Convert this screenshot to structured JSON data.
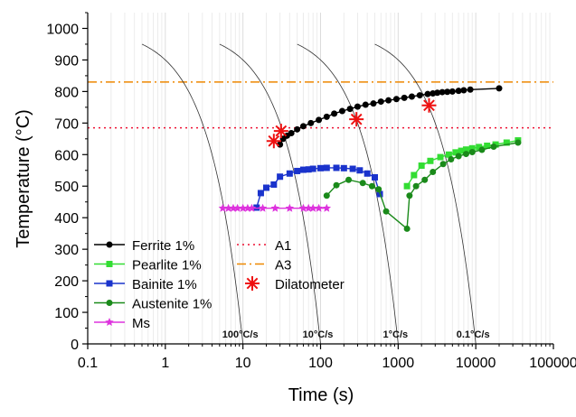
{
  "chart_data": {
    "type": "line",
    "xscale": "log",
    "xlabel": "Time (s)",
    "ylabel": "Temperature (°C)",
    "xlim": [
      0.1,
      100000
    ],
    "ylim": [
      0,
      1050
    ],
    "x_ticks": [
      {
        "value": 0.1,
        "label": "0.1"
      },
      {
        "value": 1,
        "label": "1"
      },
      {
        "value": 10,
        "label": "10"
      },
      {
        "value": 100,
        "label": "100"
      },
      {
        "value": 1000,
        "label": "1000"
      },
      {
        "value": 10000,
        "label": "10000"
      },
      {
        "value": 100000,
        "label": "100000"
      }
    ],
    "y_ticks": [
      {
        "value": 0,
        "label": "0"
      },
      {
        "value": 100,
        "label": "100"
      },
      {
        "value": 200,
        "label": "200"
      },
      {
        "value": 300,
        "label": "300"
      },
      {
        "value": 400,
        "label": "400"
      },
      {
        "value": 500,
        "label": "500"
      },
      {
        "value": 600,
        "label": "600"
      },
      {
        "value": 700,
        "label": "700"
      },
      {
        "value": 800,
        "label": "800"
      },
      {
        "value": 900,
        "label": "900"
      },
      {
        "value": 1000,
        "label": "1000"
      }
    ],
    "grid": "vertical minor gridlines",
    "legend_position": "bottom-left",
    "series": [
      {
        "name": "Ferrite 1%",
        "color": "#000000",
        "marker": "circle",
        "line": "solid",
        "points": [
          [
            30,
            632
          ],
          [
            33,
            650
          ],
          [
            37,
            660
          ],
          [
            42,
            668
          ],
          [
            50,
            680
          ],
          [
            60,
            690
          ],
          [
            75,
            700
          ],
          [
            95,
            710
          ],
          [
            120,
            720
          ],
          [
            150,
            730
          ],
          [
            190,
            738
          ],
          [
            240,
            745
          ],
          [
            300,
            752
          ],
          [
            380,
            758
          ],
          [
            480,
            762
          ],
          [
            600,
            768
          ],
          [
            750,
            772
          ],
          [
            950,
            776
          ],
          [
            1200,
            780
          ],
          [
            1500,
            784
          ],
          [
            1900,
            788
          ],
          [
            2400,
            792
          ],
          [
            2800,
            794
          ],
          [
            3200,
            796
          ],
          [
            3700,
            798
          ],
          [
            4300,
            799
          ],
          [
            5000,
            800
          ],
          [
            6000,
            802
          ],
          [
            7000,
            804
          ],
          [
            8500,
            806
          ],
          [
            20000,
            810
          ]
        ]
      },
      {
        "name": "Pearlite 1%",
        "color": "#33dd33",
        "marker": "square",
        "line": "solid",
        "points": [
          [
            1300,
            500
          ],
          [
            1600,
            535
          ],
          [
            2000,
            565
          ],
          [
            2600,
            580
          ],
          [
            3500,
            592
          ],
          [
            4500,
            600
          ],
          [
            5500,
            607
          ],
          [
            6500,
            612
          ],
          [
            7500,
            616
          ],
          [
            9000,
            620
          ],
          [
            11000,
            624
          ],
          [
            14000,
            628
          ],
          [
            18000,
            632
          ],
          [
            25000,
            638
          ],
          [
            35000,
            645
          ]
        ]
      },
      {
        "name": "Bainite 1%",
        "color": "#1a33cc",
        "marker": "square",
        "line": "solid",
        "points": [
          [
            15,
            432
          ],
          [
            17,
            478
          ],
          [
            20,
            495
          ],
          [
            25,
            505
          ],
          [
            30,
            530
          ],
          [
            40,
            540
          ],
          [
            50,
            548
          ],
          [
            60,
            552
          ],
          [
            70,
            553
          ],
          [
            80,
            555
          ],
          [
            100,
            557
          ],
          [
            120,
            558
          ],
          [
            160,
            558
          ],
          [
            200,
            557
          ],
          [
            260,
            555
          ],
          [
            320,
            550
          ],
          [
            400,
            540
          ],
          [
            500,
            528
          ],
          [
            580,
            475
          ]
        ]
      },
      {
        "name": "Austenite 1%",
        "color": "#1a8a1a",
        "marker": "circle",
        "line": "solid",
        "points": [
          [
            120,
            470
          ],
          [
            160,
            503
          ],
          [
            230,
            520
          ],
          [
            350,
            510
          ],
          [
            460,
            500
          ],
          [
            560,
            490
          ],
          [
            700,
            420
          ],
          [
            1300,
            365
          ],
          [
            1400,
            470
          ],
          [
            1700,
            500
          ],
          [
            2200,
            520
          ],
          [
            2800,
            545
          ],
          [
            3800,
            570
          ],
          [
            4800,
            585
          ],
          [
            6000,
            595
          ],
          [
            7500,
            602
          ],
          [
            9000,
            608
          ],
          [
            12000,
            615
          ],
          [
            17000,
            625
          ],
          [
            35000,
            638
          ]
        ]
      },
      {
        "name": "Ms",
        "color": "#dd33dd",
        "marker": "star",
        "line": "solid",
        "points": [
          [
            5.5,
            430
          ],
          [
            6.5,
            430
          ],
          [
            7.5,
            430
          ],
          [
            8.5,
            430
          ],
          [
            10,
            430
          ],
          [
            11.5,
            430
          ],
          [
            13,
            430
          ],
          [
            18,
            430
          ],
          [
            26,
            430
          ],
          [
            40,
            430
          ],
          [
            60,
            430
          ],
          [
            70,
            430
          ],
          [
            80,
            430
          ],
          [
            95,
            430
          ],
          [
            120,
            430
          ]
        ]
      },
      {
        "name": "Dilatometer",
        "color": "#ee1111",
        "marker": "asterisk",
        "line": "none",
        "points": [
          [
            25,
            643
          ],
          [
            31,
            675
          ],
          [
            290,
            712
          ],
          [
            2500,
            756
          ]
        ]
      }
    ],
    "reference_lines": [
      {
        "name": "A1",
        "y": 685,
        "color": "#ee1133",
        "style": "dotted"
      },
      {
        "name": "A3",
        "y": 830,
        "color": "#ee8800",
        "style": "dashdot"
      }
    ],
    "cooling_curves": [
      {
        "label": "100°C/s",
        "start_time": 0.5
      },
      {
        "label": "10°C/s",
        "start_time": 5
      },
      {
        "label": "1°C/s",
        "start_time": 50
      },
      {
        "label": "0.1°C/s",
        "start_time": 500
      }
    ],
    "cooling_curve_start_temperature": 950
  }
}
